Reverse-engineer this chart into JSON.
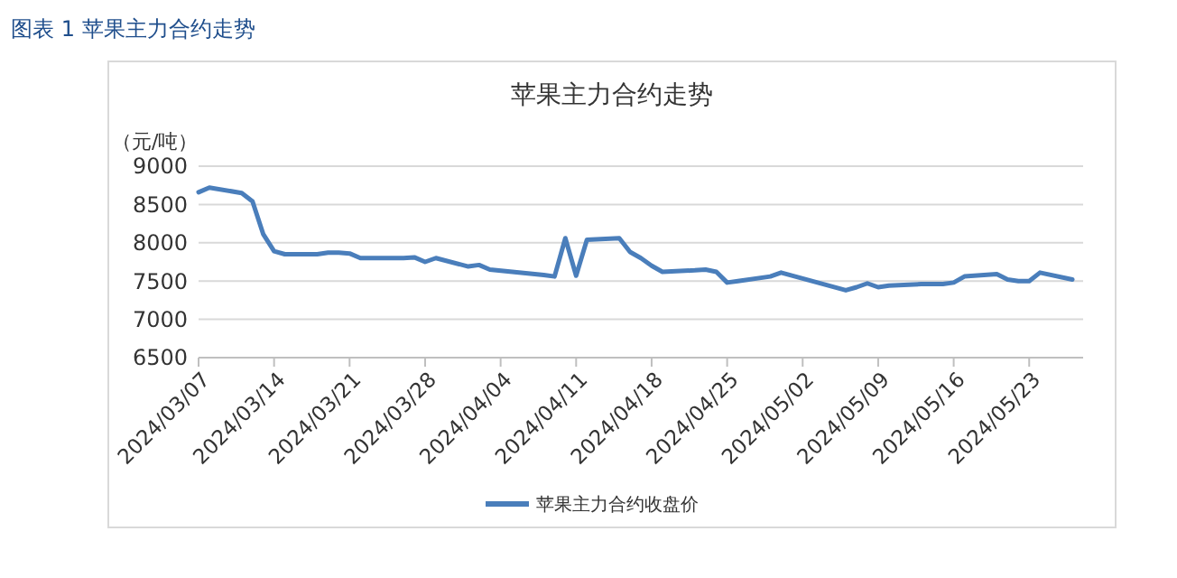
{
  "chart_data": {
    "type": "line",
    "title": "苹果主力合约走势",
    "ylabel": "（元/吨）",
    "annotations": [
      "图表 1  苹果主力合约走势"
    ],
    "x": [
      "2024-03-07",
      "2024-03-08",
      "2024-03-11",
      "2024-03-12",
      "2024-03-13",
      "2024-03-14",
      "2024-03-15",
      "2024-03-18",
      "2024-03-19",
      "2024-03-20",
      "2024-03-21",
      "2024-03-22",
      "2024-03-25",
      "2024-03-26",
      "2024-03-27",
      "2024-03-28",
      "2024-03-29",
      "2024-04-01",
      "2024-04-02",
      "2024-04-03",
      "2024-04-08",
      "2024-04-09",
      "2024-04-10",
      "2024-04-11",
      "2024-04-12",
      "2024-04-15",
      "2024-04-16",
      "2024-04-17",
      "2024-04-18",
      "2024-04-19",
      "2024-04-22",
      "2024-04-23",
      "2024-04-24",
      "2024-04-25",
      "2024-04-26",
      "2024-04-29",
      "2024-04-30",
      "2024-05-06",
      "2024-05-07",
      "2024-05-08",
      "2024-05-09",
      "2024-05-10",
      "2024-05-13",
      "2024-05-14",
      "2024-05-15",
      "2024-05-16",
      "2024-05-17",
      "2024-05-20",
      "2024-05-21",
      "2024-05-22",
      "2024-05-23",
      "2024-05-24",
      "2024-05-27"
    ],
    "series": [
      {
        "name": "苹果主力合约收盘价",
        "color": "#4a7ebb",
        "values": [
          8660,
          8720,
          8650,
          8540,
          8110,
          7890,
          7850,
          7850,
          7870,
          7870,
          7860,
          7800,
          7800,
          7800,
          7810,
          7750,
          7800,
          7690,
          7710,
          7650,
          7580,
          7560,
          8060,
          7570,
          8040,
          8060,
          7880,
          7800,
          7700,
          7620,
          7640,
          7650,
          7620,
          7480,
          7500,
          7560,
          7610,
          7380,
          7420,
          7470,
          7420,
          7440,
          7460,
          7460,
          7460,
          7480,
          7560,
          7590,
          7520,
          7500,
          7500,
          7610,
          7520
        ]
      }
    ],
    "xlim": [
      "2024-03-07",
      "2024-05-28"
    ],
    "xticks": [
      {
        "value": "2024-03-07",
        "label": "2024/03/07"
      },
      {
        "value": "2024-03-14",
        "label": "2024/03/14"
      },
      {
        "value": "2024-03-21",
        "label": "2024/03/21"
      },
      {
        "value": "2024-03-28",
        "label": "2024/03/28"
      },
      {
        "value": "2024-04-04",
        "label": "2024/04/04"
      },
      {
        "value": "2024-04-11",
        "label": "2024/04/11"
      },
      {
        "value": "2024-04-18",
        "label": "2024/04/18"
      },
      {
        "value": "2024-04-25",
        "label": "2024/04/25"
      },
      {
        "value": "2024-05-02",
        "label": "2024/05/02"
      },
      {
        "value": "2024-05-09",
        "label": "2024/05/09"
      },
      {
        "value": "2024-05-16",
        "label": "2024/05/16"
      },
      {
        "value": "2024-05-23",
        "label": "2024/05/23"
      }
    ],
    "ylim": [
      6500,
      9000
    ],
    "yticks": [
      6500,
      7000,
      7500,
      8000,
      8500,
      9000
    ],
    "grid": "y",
    "legend": "bottom",
    "marker": "none",
    "line_style": "solid"
  }
}
